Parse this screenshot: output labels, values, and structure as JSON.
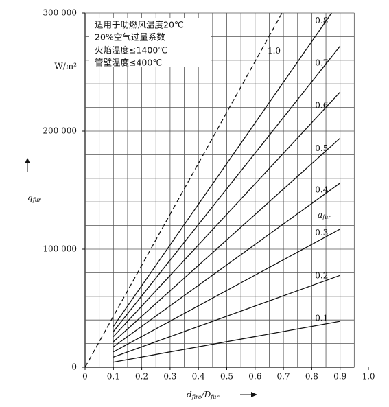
{
  "chart_data": {
    "type": "line",
    "annotations": [
      "适用于助燃风温度20℃",
      "20%空气过量系数",
      "火焰温度≤1400℃",
      "管壁温度≤400℃"
    ],
    "y_unit": "W/m²",
    "y_label": {
      "main": "q",
      "sub": "fur"
    },
    "x_label": {
      "main": "d",
      "sub": "fire",
      "main2": "/D",
      "sub2": "fur"
    },
    "legend_title": {
      "main": "a",
      "sub": "fur"
    },
    "xlim": [
      0,
      1
    ],
    "ylim": [
      0,
      300000
    ],
    "xticks": [
      0,
      0.1,
      0.2,
      0.3,
      0.4,
      0.5,
      0.6,
      0.7,
      0.8,
      0.9,
      {
        "value": 1,
        "label": "1.0"
      }
    ],
    "yticks": [
      0,
      {
        "value": 100000,
        "label": "100 000"
      },
      {
        "value": 200000,
        "label": "200 000"
      },
      {
        "value": 300000,
        "label": "300 000"
      }
    ],
    "xgrid": [
      0,
      0.05,
      0.1,
      0.15,
      0.2,
      0.25,
      0.3,
      0.35,
      0.4,
      0.45,
      0.5,
      0.55,
      0.6,
      0.65,
      0.7,
      0.75,
      0.8,
      0.85,
      0.9,
      0.95
    ],
    "ygrid": [
      0,
      20000,
      40000,
      60000,
      80000,
      100000,
      120000,
      140000,
      160000,
      180000,
      200000,
      220000,
      240000,
      260000,
      280000,
      300000
    ],
    "series": [
      {
        "name": "0.1",
        "color": "#111111",
        "x": [
          0.1,
          0.9
        ],
        "values": [
          4300,
          38900
        ]
      },
      {
        "name": "0.2",
        "color": "#111111",
        "x": [
          0.1,
          0.9
        ],
        "values": [
          8600,
          77800
        ]
      },
      {
        "name": "0.3",
        "color": "#111111",
        "x": [
          0.1,
          0.9
        ],
        "values": [
          13000,
          117000
        ]
      },
      {
        "name": "0.4",
        "color": "#111111",
        "x": [
          0.1,
          0.9
        ],
        "values": [
          17300,
          156000
        ]
      },
      {
        "name": "0.5",
        "color": "#111111",
        "x": [
          0.1,
          0.9
        ],
        "values": [
          21600,
          194000
        ]
      },
      {
        "name": "0.6",
        "color": "#111111",
        "x": [
          0.1,
          0.9
        ],
        "values": [
          25900,
          233000
        ]
      },
      {
        "name": "0.7",
        "color": "#111111",
        "x": [
          0.1,
          0.9
        ],
        "values": [
          30200,
          272000
        ]
      },
      {
        "name": "0.8",
        "color": "#111111",
        "x": [
          0.1,
          0.87
        ],
        "values": [
          34600,
          300000
        ]
      },
      {
        "name": "1.0",
        "color": "#111111",
        "x": [
          0,
          0.695
        ],
        "values": [
          0,
          300000
        ],
        "dashed": true
      }
    ]
  }
}
